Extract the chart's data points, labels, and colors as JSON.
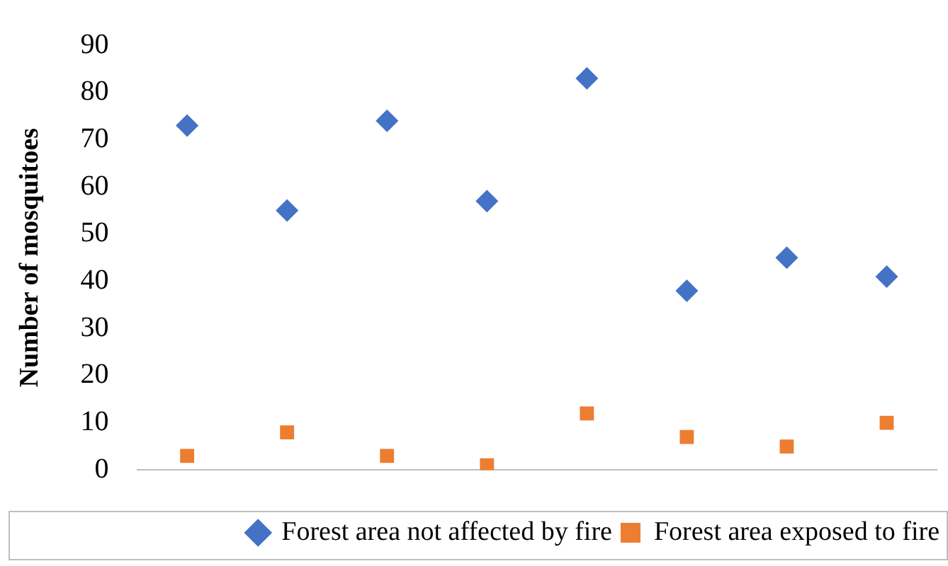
{
  "chart_data": {
    "type": "scatter",
    "ylabel": "Number of mosquitoes",
    "categories": [
      null,
      null,
      null,
      null,
      null,
      null,
      null,
      null
    ],
    "ylim": [
      0,
      90
    ],
    "yticks": [
      0,
      10,
      20,
      30,
      40,
      50,
      60,
      70,
      80,
      90
    ],
    "grid": false,
    "legend": "bottom right",
    "series": [
      {
        "name": "Forest area not affected by fire",
        "color": "#4472c4",
        "marker": "diamond",
        "values": [
          73,
          55,
          74,
          57,
          83,
          38,
          45,
          41
        ]
      },
      {
        "name": "Forest area exposed to fire",
        "color": "#ed7d31",
        "marker": "square",
        "values": [
          3,
          8,
          3,
          1,
          12,
          7,
          5,
          10
        ]
      }
    ]
  }
}
